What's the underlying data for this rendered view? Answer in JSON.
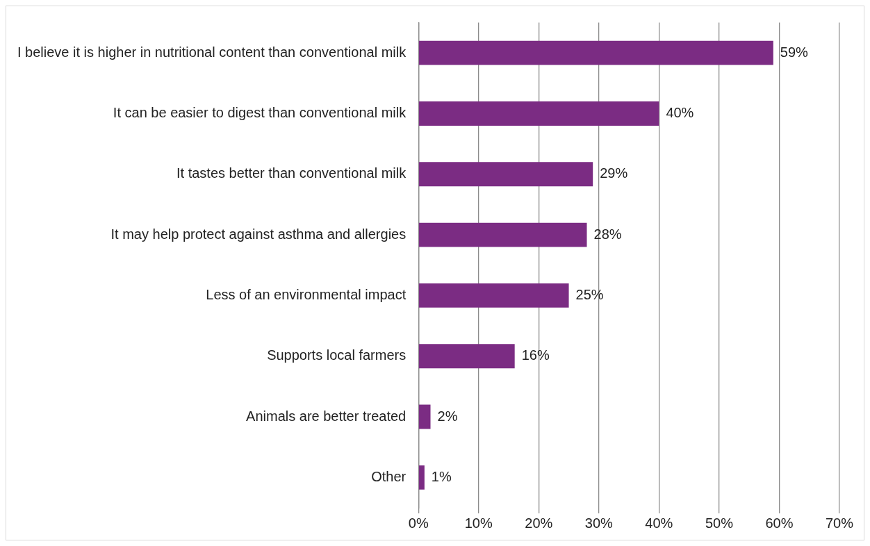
{
  "chart_data": {
    "type": "bar",
    "orientation": "horizontal",
    "categories": [
      "I believe it is higher in nutritional content than conventional milk",
      "It can be easier to digest than conventional milk",
      "It tastes better than conventional milk",
      "It may help protect against asthma and allergies",
      "Less of an environmental impact",
      "Supports local farmers",
      "Animals are better treated",
      "Other"
    ],
    "values": [
      59,
      40,
      29,
      28,
      25,
      16,
      2,
      1
    ],
    "value_labels": [
      "59%",
      "40%",
      "29%",
      "28%",
      "25%",
      "16%",
      "2%",
      "1%"
    ],
    "color": "#7b2c83",
    "xlim": [
      0,
      70
    ],
    "xticks": [
      {
        "value": 0,
        "label": "0%"
      },
      {
        "value": 10,
        "label": "10%"
      },
      {
        "value": 20,
        "label": "20%"
      },
      {
        "value": 30,
        "label": "30%"
      },
      {
        "value": 40,
        "label": "40%"
      },
      {
        "value": 50,
        "label": "50%"
      },
      {
        "value": 60,
        "label": "60%"
      },
      {
        "value": 70,
        "label": "70%"
      }
    ],
    "grid": "x",
    "legend": false
  }
}
